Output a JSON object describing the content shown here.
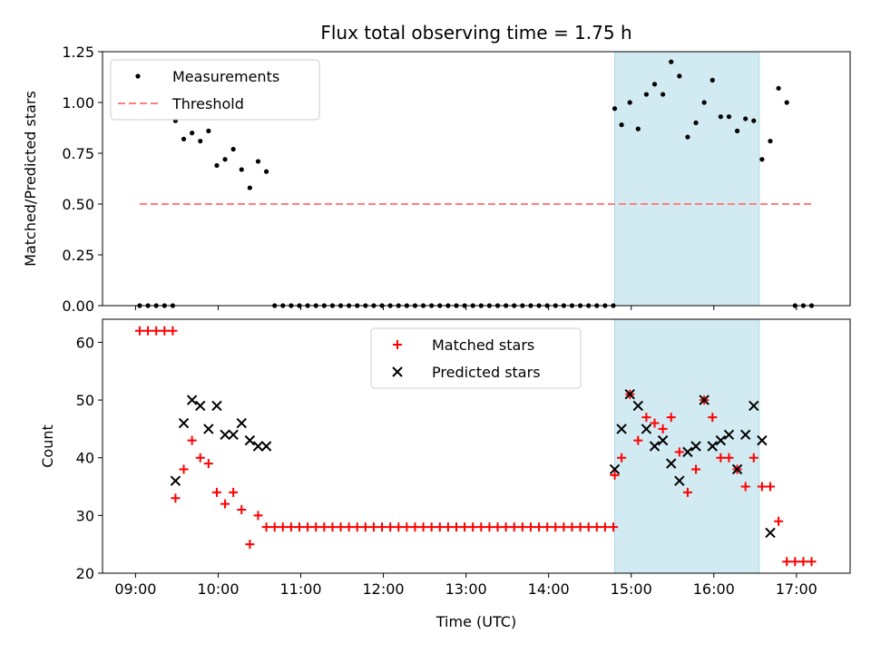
{
  "title": "Flux total observing time = 1.75 h",
  "colors": {
    "measurement": "#000000",
    "threshold": "#ff7f7f",
    "matched": "#ff0000",
    "predicted": "#000000",
    "window": "#add8e6"
  },
  "chart_data": [
    {
      "type": "scatter",
      "ylabel": "Matched/Predicted stars",
      "xlabel": "",
      "ylim": [
        0,
        1.25
      ],
      "yticks": [
        0.0,
        0.25,
        0.5,
        0.75,
        1.0,
        1.25
      ],
      "ytick_labels": [
        "0.00",
        "0.25",
        "0.50",
        "0.75",
        "1.00",
        "1.25"
      ],
      "legend_position": "top-left",
      "highlight_window": [
        "14:48",
        "16:33"
      ],
      "threshold": {
        "name": "Threshold",
        "value": 0.5,
        "x_range": [
          "09:03",
          "17:12"
        ]
      },
      "series": [
        {
          "name": "Measurements",
          "x": [
            "09:03",
            "09:09",
            "09:15",
            "09:21",
            "09:27",
            "09:29",
            "09:35",
            "09:41",
            "09:47",
            "09:53",
            "09:59",
            "10:05",
            "10:11",
            "10:17",
            "10:23",
            "10:29",
            "10:35",
            "10:41",
            "10:47",
            "10:53",
            "10:59",
            "11:05",
            "11:11",
            "11:17",
            "11:23",
            "11:29",
            "11:35",
            "11:41",
            "11:47",
            "11:53",
            "11:59",
            "12:05",
            "12:11",
            "12:17",
            "12:23",
            "12:29",
            "12:35",
            "12:41",
            "12:47",
            "12:53",
            "12:59",
            "13:05",
            "13:11",
            "13:17",
            "13:23",
            "13:29",
            "13:35",
            "13:41",
            "13:47",
            "13:53",
            "13:59",
            "14:05",
            "14:11",
            "14:17",
            "14:23",
            "14:29",
            "14:35",
            "14:41",
            "14:47",
            "14:48",
            "14:53",
            "14:59",
            "15:05",
            "15:11",
            "15:17",
            "15:23",
            "15:29",
            "15:35",
            "15:41",
            "15:47",
            "15:53",
            "15:59",
            "16:05",
            "16:11",
            "16:17",
            "16:23",
            "16:29",
            "16:35",
            "16:41",
            "16:47",
            "16:53",
            "16:59",
            "17:05",
            "17:11"
          ],
          "y": [
            0,
            0,
            0,
            0,
            0,
            0.91,
            0.82,
            0.85,
            0.81,
            0.86,
            0.69,
            0.72,
            0.77,
            0.67,
            0.58,
            0.71,
            0.66,
            0,
            0,
            0,
            0,
            0,
            0,
            0,
            0,
            0,
            0,
            0,
            0,
            0,
            0,
            0,
            0,
            0,
            0,
            0,
            0,
            0,
            0,
            0,
            0,
            0,
            0,
            0,
            0,
            0,
            0,
            0,
            0,
            0,
            0,
            0,
            0,
            0,
            0,
            0,
            0,
            0,
            0,
            0.97,
            0.89,
            1.0,
            0.87,
            1.04,
            1.09,
            1.04,
            1.2,
            1.13,
            0.83,
            0.9,
            1.0,
            1.11,
            0.93,
            0.93,
            0.86,
            0.92,
            0.91,
            0.72,
            0.81,
            1.07,
            1.0,
            0,
            0,
            0
          ]
        }
      ]
    },
    {
      "type": "scatter",
      "ylabel": "Count",
      "xlabel": "Time (UTC)",
      "ylim": [
        20,
        64
      ],
      "yticks": [
        20,
        30,
        40,
        50,
        60
      ],
      "xlim": [
        "08:36",
        "17:39"
      ],
      "xticks": [
        "09:00",
        "10:00",
        "11:00",
        "12:00",
        "13:00",
        "14:00",
        "15:00",
        "16:00",
        "17:00"
      ],
      "legend_position": "top-center",
      "highlight_window": [
        "14:48",
        "16:33"
      ],
      "series": [
        {
          "name": "Matched stars",
          "marker": "plus",
          "x": [
            "09:03",
            "09:09",
            "09:15",
            "09:21",
            "09:27",
            "09:29",
            "09:35",
            "09:41",
            "09:47",
            "09:53",
            "09:59",
            "10:05",
            "10:11",
            "10:17",
            "10:23",
            "10:29",
            "10:35",
            "10:41",
            "10:47",
            "10:53",
            "10:59",
            "11:05",
            "11:11",
            "11:17",
            "11:23",
            "11:29",
            "11:35",
            "11:41",
            "11:47",
            "11:53",
            "11:59",
            "12:05",
            "12:11",
            "12:17",
            "12:23",
            "12:29",
            "12:35",
            "12:41",
            "12:47",
            "12:53",
            "12:59",
            "13:05",
            "13:11",
            "13:17",
            "13:23",
            "13:29",
            "13:35",
            "13:41",
            "13:47",
            "13:53",
            "13:59",
            "14:05",
            "14:11",
            "14:17",
            "14:23",
            "14:29",
            "14:35",
            "14:41",
            "14:47",
            "14:48",
            "14:53",
            "14:59",
            "15:05",
            "15:11",
            "15:17",
            "15:23",
            "15:29",
            "15:35",
            "15:41",
            "15:47",
            "15:53",
            "15:59",
            "16:05",
            "16:11",
            "16:17",
            "16:23",
            "16:29",
            "16:35",
            "16:41",
            "16:47",
            "16:53",
            "16:59",
            "17:05",
            "17:11"
          ],
          "y": [
            62,
            62,
            62,
            62,
            62,
            33,
            38,
            43,
            40,
            39,
            34,
            32,
            34,
            31,
            25,
            30,
            28,
            28,
            28,
            28,
            28,
            28,
            28,
            28,
            28,
            28,
            28,
            28,
            28,
            28,
            28,
            28,
            28,
            28,
            28,
            28,
            28,
            28,
            28,
            28,
            28,
            28,
            28,
            28,
            28,
            28,
            28,
            28,
            28,
            28,
            28,
            28,
            28,
            28,
            28,
            28,
            28,
            28,
            28,
            37,
            40,
            51,
            43,
            47,
            46,
            45,
            47,
            41,
            34,
            38,
            50,
            47,
            40,
            40,
            38,
            35,
            40,
            35,
            35,
            29,
            22,
            22,
            22,
            22
          ]
        },
        {
          "name": "Predicted stars",
          "marker": "x",
          "x": [
            "09:29",
            "09:35",
            "09:41",
            "09:47",
            "09:53",
            "09:59",
            "10:05",
            "10:11",
            "10:17",
            "10:23",
            "10:29",
            "10:35",
            "14:48",
            "14:53",
            "14:59",
            "15:05",
            "15:11",
            "15:17",
            "15:23",
            "15:29",
            "15:35",
            "15:41",
            "15:47",
            "15:53",
            "15:59",
            "16:05",
            "16:11",
            "16:17",
            "16:23",
            "16:29",
            "16:35",
            "16:41"
          ],
          "y": [
            36,
            46,
            50,
            49,
            45,
            49,
            44,
            44,
            46,
            43,
            42,
            42,
            38,
            45,
            51,
            49,
            45,
            42,
            43,
            39,
            36,
            41,
            42,
            50,
            42,
            43,
            44,
            38,
            44,
            49,
            43,
            27
          ]
        }
      ]
    }
  ]
}
